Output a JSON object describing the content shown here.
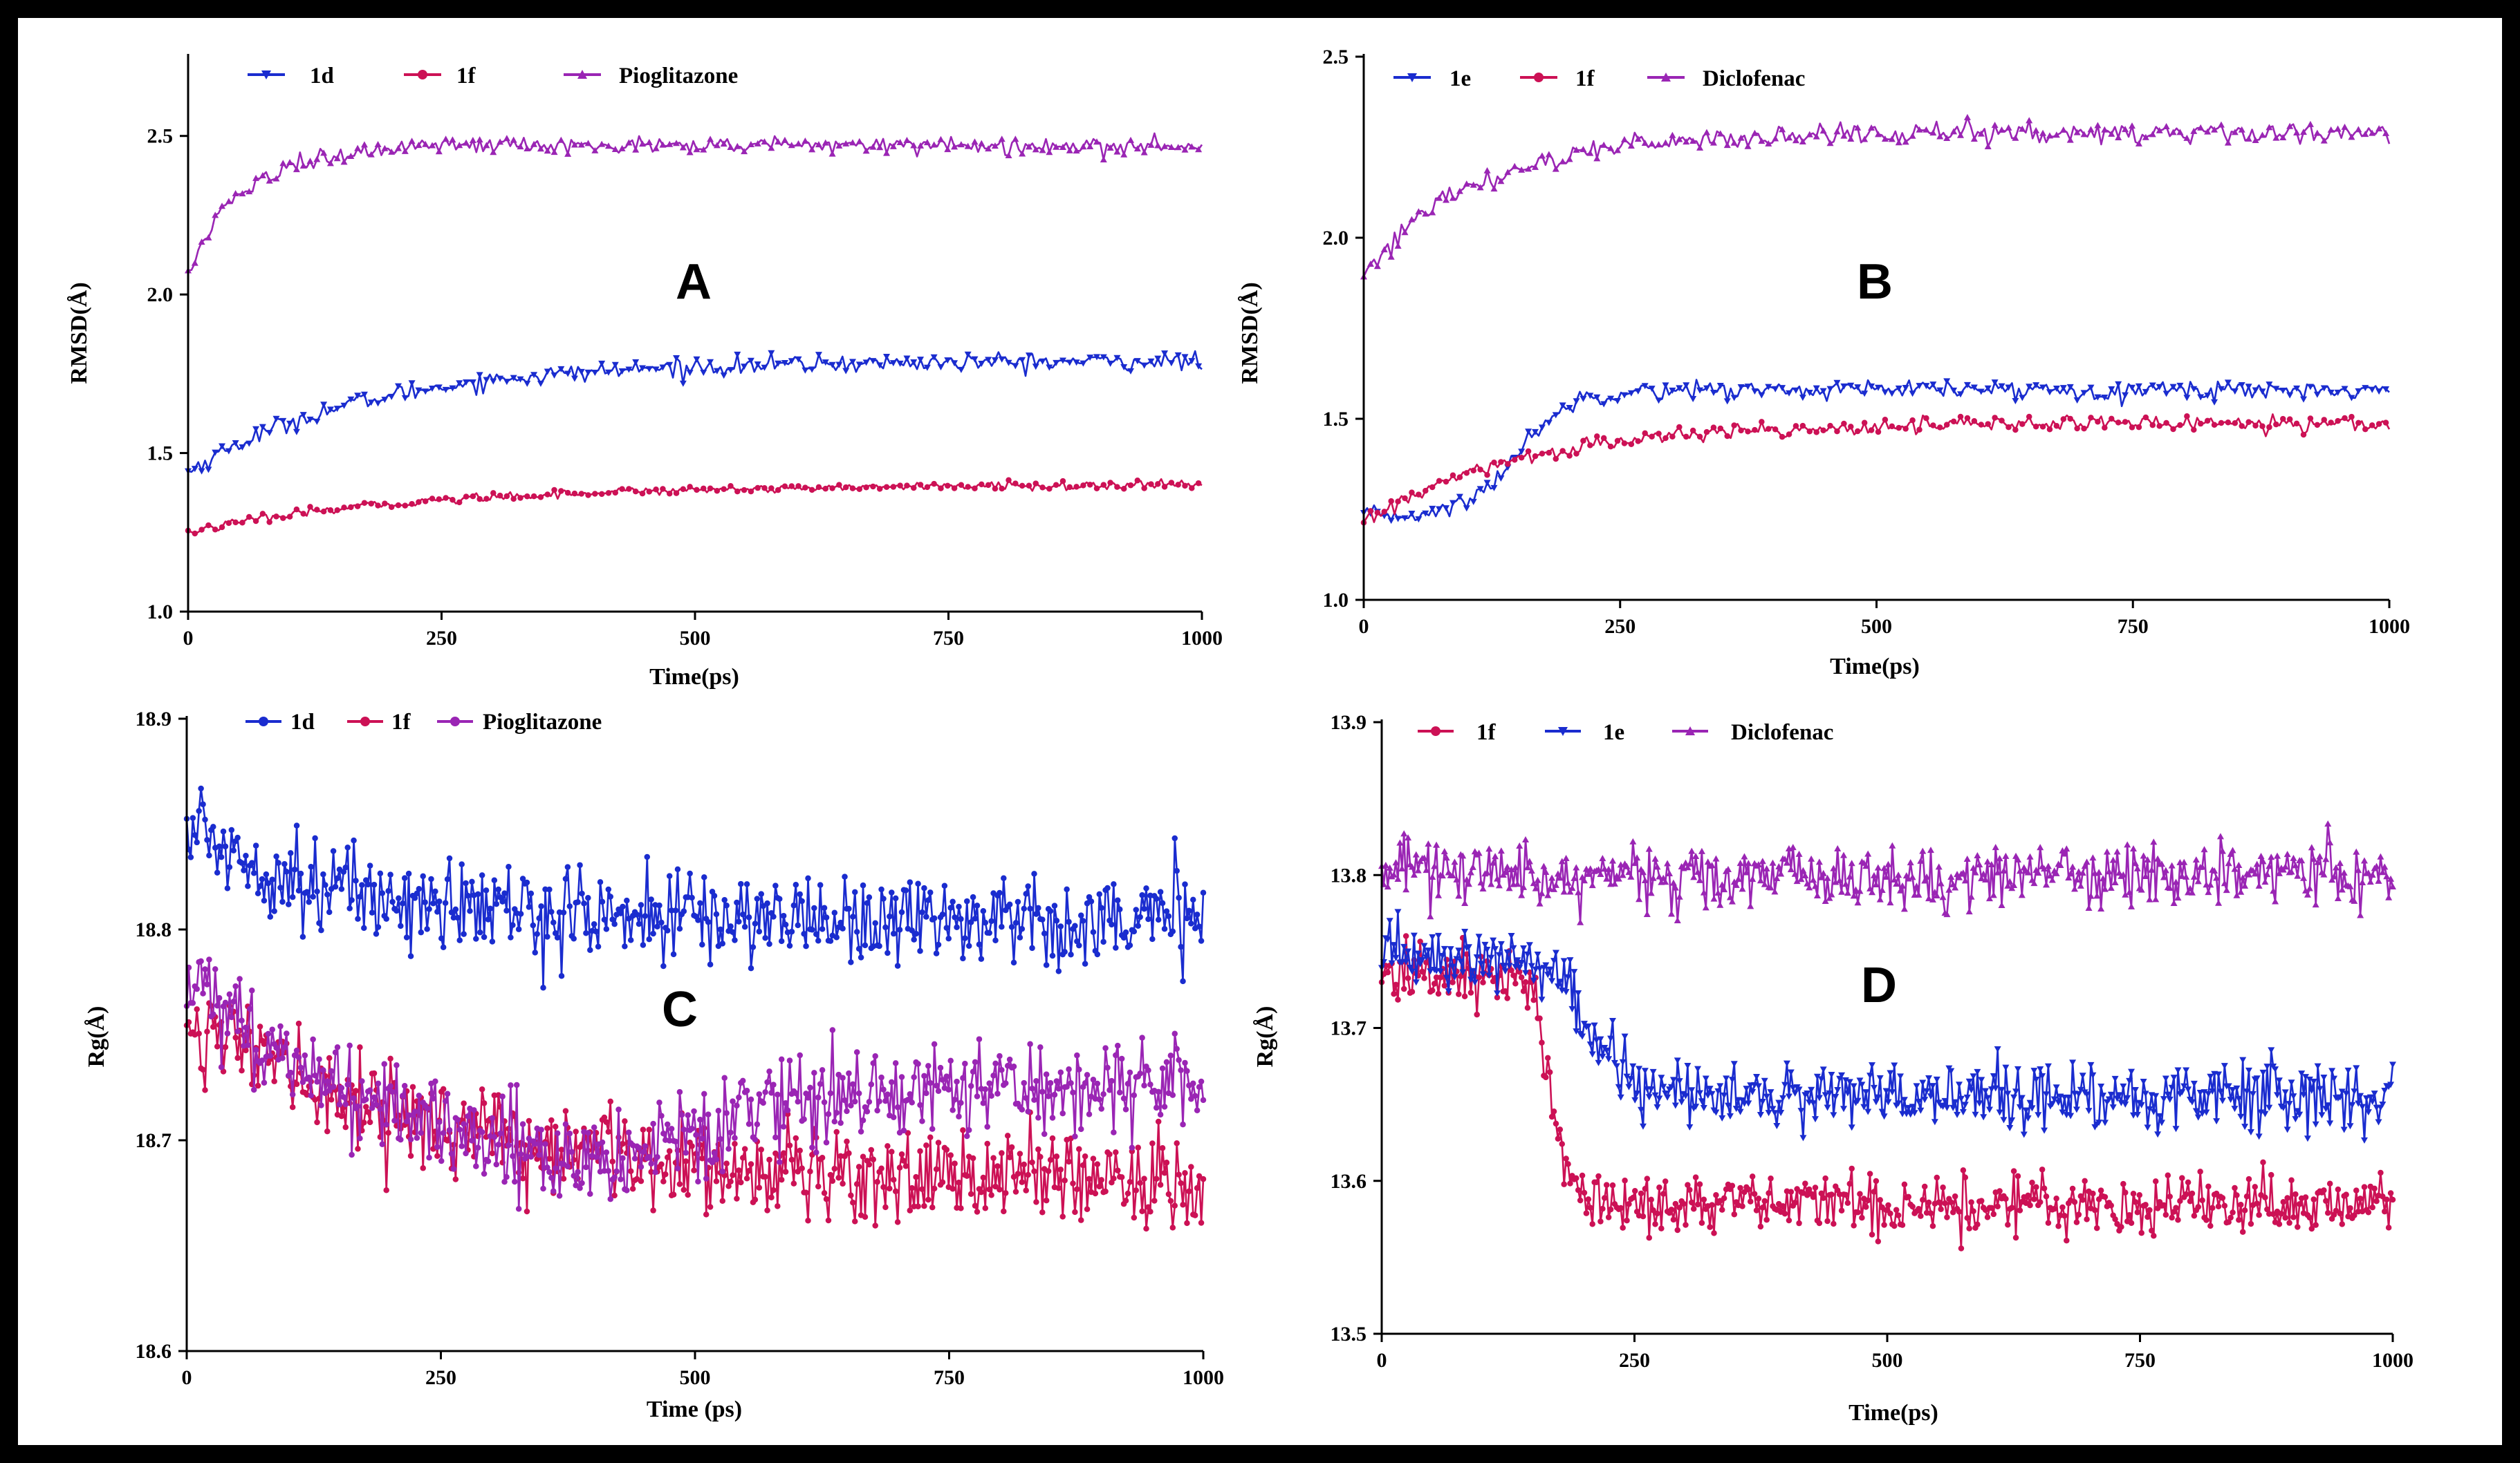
{
  "colors": {
    "blue": "#1a2ccf",
    "red": "#cc1155",
    "purple": "#9a25b4",
    "axis": "#000000"
  },
  "chart_data": [
    {
      "id": "A",
      "type": "line",
      "panel_label": "A",
      "xlabel": "Time(ps)",
      "ylabel": "RMSD(Å)",
      "xlim": [
        0,
        1000
      ],
      "ylim": [
        1.0,
        2.75
      ],
      "xticks": [
        0,
        250,
        500,
        750,
        1000
      ],
      "yticks": [
        1.0,
        1.5,
        2.0,
        2.5
      ],
      "ytick_decimals": 1,
      "grid": false,
      "legend_position": "top-left",
      "series": [
        {
          "name": "1d",
          "color": "#1a2ccf",
          "marker": "triangle-down",
          "style": "plateau",
          "x_start": 0,
          "y_start": 1.44,
          "y_end": 1.79,
          "tau": 170,
          "noise": 0.017,
          "points": 300
        },
        {
          "name": "1f",
          "color": "#cc1155",
          "marker": "circle",
          "style": "plateau",
          "x_start": 0,
          "y_start": 1.25,
          "y_end": 1.4,
          "tau": 220,
          "noise": 0.008,
          "points": 300
        },
        {
          "name": "Pioglitazone",
          "color": "#9a25b4",
          "marker": "triangle-up",
          "style": "plateau",
          "x_start": 0,
          "y_start": 2.07,
          "y_end": 2.47,
          "tau": 55,
          "noise": 0.017,
          "points": 300
        }
      ]
    },
    {
      "id": "B",
      "type": "line",
      "panel_label": "B",
      "xlabel": "Time(ps)",
      "ylabel": "RMSD(Å)",
      "xlim": [
        0,
        1000
      ],
      "ylim": [
        1.0,
        2.5
      ],
      "xticks": [
        0,
        250,
        500,
        750,
        1000
      ],
      "yticks": [
        1.0,
        1.5,
        2.0,
        2.5
      ],
      "ytick_decimals": 1,
      "grid": false,
      "legend_position": "top-left",
      "series": [
        {
          "name": "1e",
          "color": "#1a2ccf",
          "marker": "triangle-down",
          "style": "sigmoid",
          "x_start": 0,
          "y_start": 1.23,
          "y_end": 1.58,
          "mid": 150,
          "width": 25,
          "noise": 0.015,
          "points": 300
        },
        {
          "name": "1f",
          "color": "#cc1155",
          "marker": "circle",
          "style": "plateau",
          "x_start": 0,
          "y_start": 1.21,
          "y_end": 1.49,
          "tau": 150,
          "noise": 0.013,
          "points": 300
        },
        {
          "name": "Diclofenac",
          "color": "#9a25b4",
          "marker": "triangle-up",
          "style": "plateau",
          "x_start": 0,
          "y_start": 1.9,
          "y_end": 2.29,
          "tau": 110,
          "noise": 0.018,
          "points": 300
        }
      ]
    },
    {
      "id": "C",
      "type": "line",
      "panel_label": "C",
      "xlabel": "Time (ps)",
      "ylabel": "Rg(Å)",
      "xlim": [
        0,
        1000
      ],
      "ylim": [
        18.6,
        18.9
      ],
      "xticks": [
        0,
        250,
        500,
        750,
        1000
      ],
      "yticks": [
        18.6,
        18.7,
        18.8,
        18.9
      ],
      "ytick_decimals": 1,
      "grid": false,
      "legend_position": "top-left",
      "series": [
        {
          "name": "1d",
          "color": "#1a2ccf",
          "marker": "circle",
          "style": "plateau",
          "x_start": 0,
          "y_start": 18.85,
          "y_end": 18.805,
          "tau": 130,
          "noise": 0.013,
          "points": 500
        },
        {
          "name": "1f",
          "color": "#cc1155",
          "marker": "circle",
          "style": "plateau",
          "x_start": 0,
          "y_start": 18.76,
          "y_end": 18.68,
          "tau": 230,
          "noise": 0.013,
          "points": 500
        },
        {
          "name": "Pioglitazone",
          "color": "#9a25b4",
          "marker": "circle",
          "style": "dip",
          "x_start": 0,
          "y_start": 18.77,
          "y_min": 18.69,
          "y_end": 18.73,
          "t_min": 400,
          "noise": 0.013,
          "points": 500
        }
      ]
    },
    {
      "id": "D",
      "type": "line",
      "panel_label": "D",
      "xlabel": "Time(ps)",
      "ylabel": "Rg(Å)",
      "xlim": [
        0,
        1000
      ],
      "ylim": [
        13.5,
        13.9
      ],
      "xticks": [
        0,
        250,
        500,
        750,
        1000
      ],
      "yticks": [
        13.5,
        13.6,
        13.7,
        13.8,
        13.9
      ],
      "ytick_decimals": 1,
      "grid": false,
      "legend_position": "top-left",
      "series": [
        {
          "name": "1f",
          "color": "#cc1155",
          "marker": "circle",
          "style": "sigmoid",
          "x_start": 0,
          "y_start": 13.735,
          "y_end": 13.585,
          "mid": 168,
          "width": 10,
          "noise": 0.012,
          "points": 500
        },
        {
          "name": "1e",
          "color": "#1a2ccf",
          "marker": "triangle-down",
          "style": "sigmoid",
          "x_start": 0,
          "y_start": 13.745,
          "y_end": 13.655,
          "mid": 205,
          "width": 18,
          "noise": 0.013,
          "points": 500
        },
        {
          "name": "Diclofenac",
          "color": "#9a25b4",
          "marker": "triangle-up",
          "style": "plateau",
          "x_start": 0,
          "y_start": 13.805,
          "y_end": 13.8,
          "tau": 100,
          "noise": 0.012,
          "points": 500
        }
      ]
    }
  ]
}
